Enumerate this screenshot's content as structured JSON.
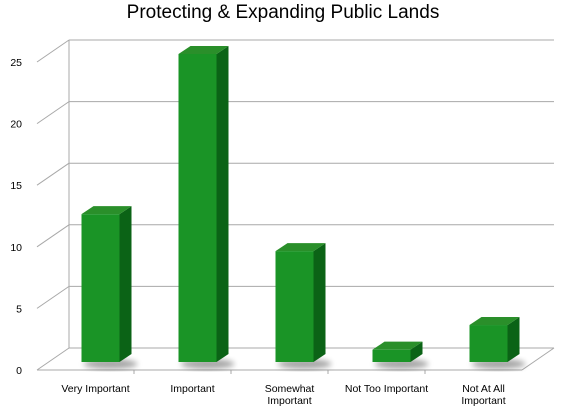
{
  "chart_data": {
    "type": "bar",
    "title": "Protecting & Expanding Public Lands",
    "xlabel": "",
    "ylabel": "",
    "categories": [
      "Very Important",
      "Important",
      "Somewhat Important",
      "Not Too Important",
      "Not At All Important"
    ],
    "category_lines": [
      [
        "Very Important"
      ],
      [
        "Important"
      ],
      [
        "Somewhat",
        "Important"
      ],
      [
        "Not Too Important"
      ],
      [
        "Not At All",
        "Important"
      ]
    ],
    "values": [
      12,
      25,
      9,
      1,
      3
    ],
    "ylim": [
      0,
      25
    ],
    "yticks": [
      0,
      5,
      10,
      15,
      20,
      25
    ],
    "grid": true,
    "legend": "none",
    "style": "3d-bar",
    "colors": {
      "bar_front": "#1a9426",
      "bar_side": "#0b6316",
      "bar_top": "#2a8f2a",
      "grid": "#a8a8a8"
    }
  }
}
